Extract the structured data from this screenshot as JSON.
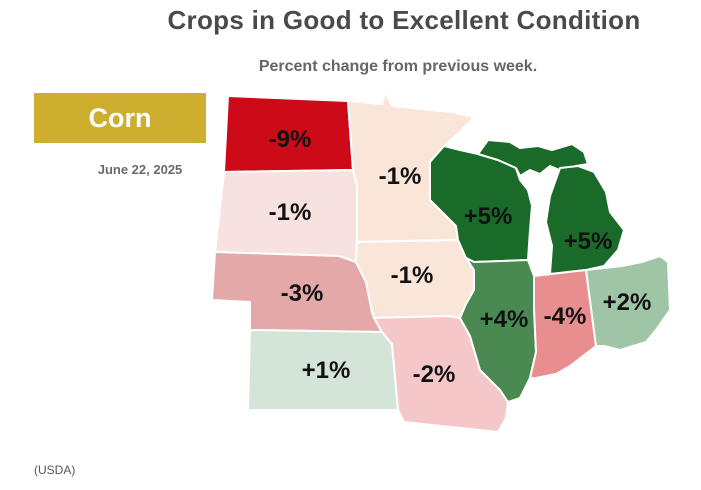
{
  "title": "Crops in Good to Excellent Condition",
  "subtitle": "Percent change from previous week.",
  "crop": "Corn",
  "date": "June 22, 2025",
  "source": "(USDA)",
  "states": [
    {
      "id": "ND",
      "change": "-9%",
      "color": "#cc0a18"
    },
    {
      "id": "SD",
      "change": "-1%",
      "color": "#f8e2df"
    },
    {
      "id": "NE",
      "change": "-3%",
      "color": "#e4a8a8"
    },
    {
      "id": "KS",
      "change": "+1%",
      "color": "#d4e4d8"
    },
    {
      "id": "MN",
      "change": "-1%",
      "color": "#f9e6d8"
    },
    {
      "id": "IA",
      "change": "-1%",
      "color": "#f9e6d8"
    },
    {
      "id": "MO",
      "change": "-2%",
      "color": "#f4c7c8"
    },
    {
      "id": "WI",
      "change": "+5%",
      "color": "#1a6b2a"
    },
    {
      "id": "MI",
      "change": "+5%",
      "color": "#1a6b2a"
    },
    {
      "id": "IL",
      "change": "+4%",
      "color": "#4a8a52"
    },
    {
      "id": "IN",
      "change": "-4%",
      "color": "#e88e8e"
    },
    {
      "id": "OH",
      "change": "+2%",
      "color": "#a0c4a6"
    }
  ]
}
